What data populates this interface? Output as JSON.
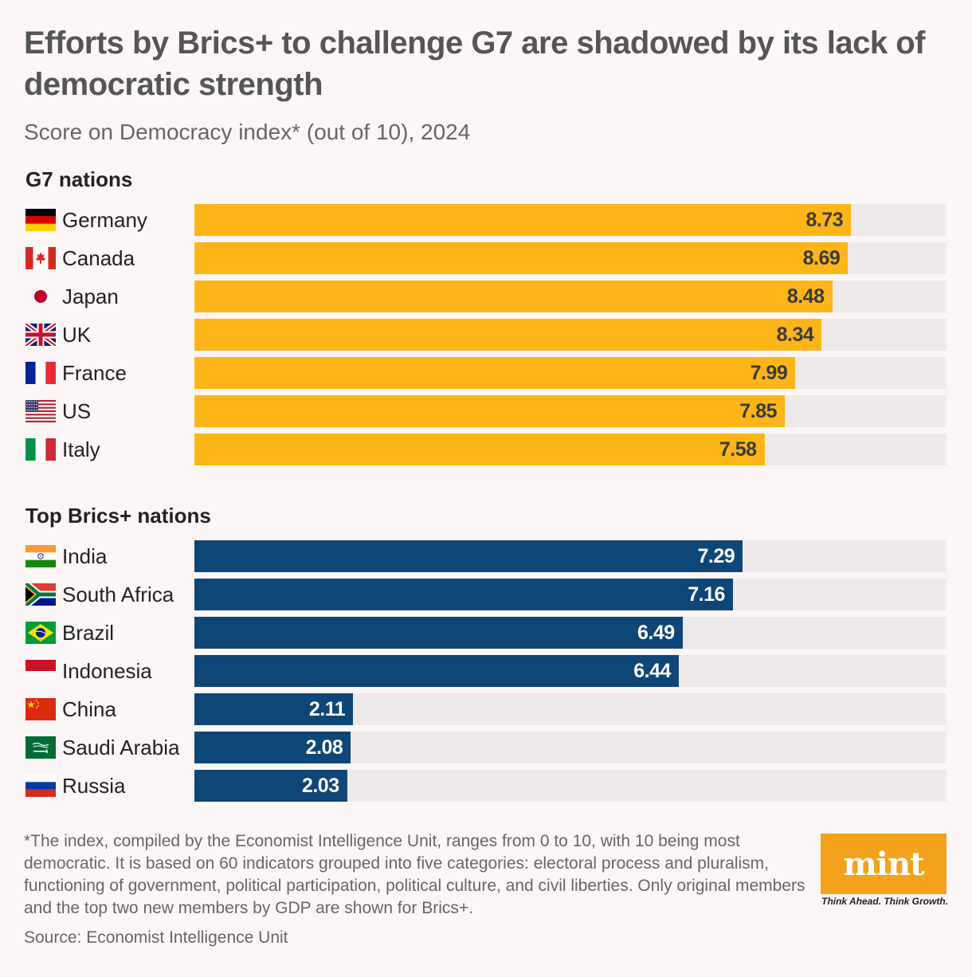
{
  "title": "Efforts by Brics+ to challenge G7 are shadowed by its lack of democratic strength",
  "subtitle": "Score on Democracy index* (out of 10), 2024",
  "colors": {
    "g7": "#fdb517",
    "brics": "#0e4678",
    "track": "#efeaea",
    "background": "#fcf7f6"
  },
  "chart_data": [
    {
      "type": "bar",
      "orientation": "horizontal",
      "title": "G7 nations",
      "xlim": [
        0,
        10
      ],
      "categories": [
        "Germany",
        "Canada",
        "Japan",
        "UK",
        "France",
        "US",
        "Italy"
      ],
      "values": [
        8.73,
        8.69,
        8.48,
        8.34,
        7.99,
        7.85,
        7.58
      ],
      "labels": [
        "8.73",
        "8.69",
        "8.48",
        "8.34",
        "7.99",
        "7.85",
        "7.58"
      ],
      "flags": [
        "germany-flag-icon",
        "canada-flag-icon",
        "japan-flag-icon",
        "uk-flag-icon",
        "france-flag-icon",
        "us-flag-icon",
        "italy-flag-icon"
      ]
    },
    {
      "type": "bar",
      "orientation": "horizontal",
      "title": "Top Brics+ nations",
      "xlim": [
        0,
        10
      ],
      "categories": [
        "India",
        "South Africa",
        "Brazil",
        "Indonesia",
        "China",
        "Saudi Arabia",
        "Russia"
      ],
      "values": [
        7.29,
        7.16,
        6.49,
        6.44,
        2.11,
        2.08,
        2.03
      ],
      "labels": [
        "7.29",
        "7.16",
        "6.49",
        "6.44",
        "2.11",
        "2.08",
        "2.03"
      ],
      "flags": [
        "india-flag-icon",
        "south-africa-flag-icon",
        "brazil-flag-icon",
        "indonesia-flag-icon",
        "china-flag-icon",
        "saudi-arabia-flag-icon",
        "russia-flag-icon"
      ]
    }
  ],
  "footnote": "*The index, compiled by the Economist Intelligence Unit, ranges from 0 to 10, with 10 being most democratic. It is based on 60 indicators grouped into five categories: electoral process and pluralism, functioning of government, political participation, political culture, and civil liberties. Only original members and the top two new members by GDP are shown for Brics+.",
  "source": "Source: Economist Intelligence Unit",
  "logo": {
    "text": "mint",
    "tagline": "Think Ahead. Think Growth."
  }
}
